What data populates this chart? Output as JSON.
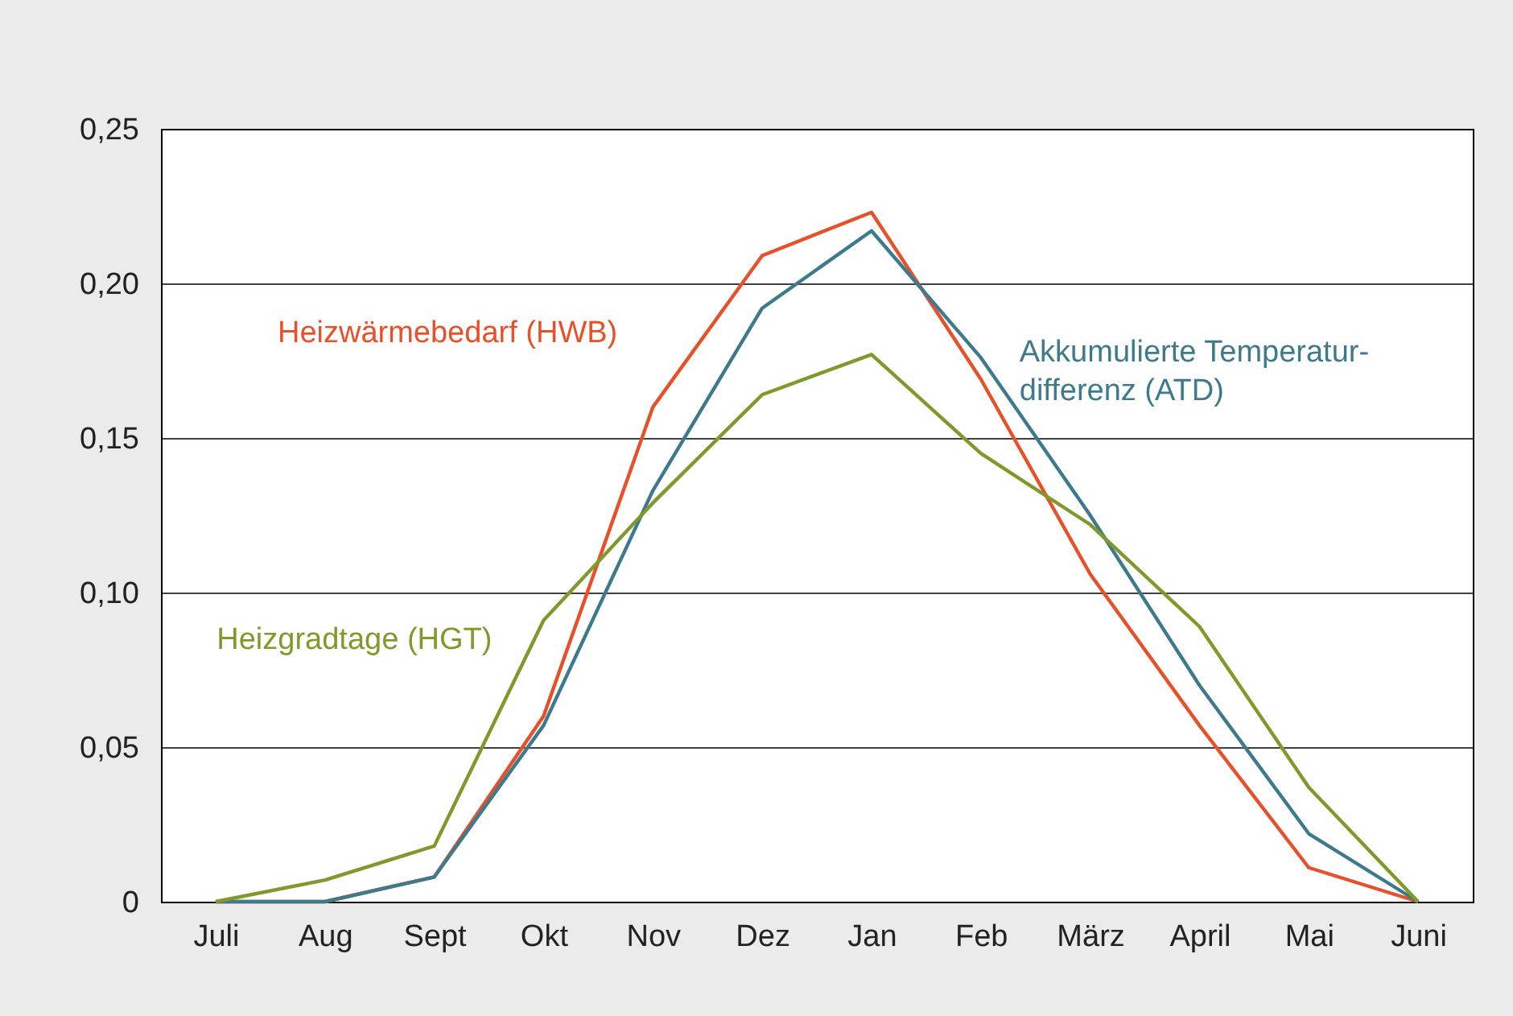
{
  "chart_data": {
    "type": "line",
    "categories": [
      "Juli",
      "Aug",
      "Sept",
      "Okt",
      "Nov",
      "Dez",
      "Jan",
      "Feb",
      "März",
      "April",
      "Mai",
      "Juni"
    ],
    "series": [
      {
        "name": "Heizwärmebedarf (HWB)",
        "color": "#e8502a",
        "values": [
          0,
          0,
          0.008,
          0.06,
          0.16,
          0.209,
          0.223,
          0.169,
          0.106,
          0.057,
          0.011,
          0
        ]
      },
      {
        "name": "Akkumulierte Temperatur-\ndifferenz (ATD)",
        "color": "#3d7a8c",
        "values": [
          0,
          0,
          0.008,
          0.057,
          0.133,
          0.192,
          0.217,
          0.176,
          0.125,
          0.07,
          0.022,
          0
        ]
      },
      {
        "name": "Heizgradtage (HGT)",
        "color": "#7f9a2a",
        "values": [
          0,
          0.007,
          0.018,
          0.091,
          0.129,
          0.164,
          0.177,
          0.145,
          0.122,
          0.089,
          0.037,
          0
        ]
      }
    ],
    "ylim": [
      0,
      0.25
    ],
    "yticks": [
      {
        "value": 0,
        "label": "0"
      },
      {
        "value": 0.05,
        "label": "0,05"
      },
      {
        "value": 0.1,
        "label": "0,10"
      },
      {
        "value": 0.15,
        "label": "0,15"
      },
      {
        "value": 0.2,
        "label": "0,20"
      },
      {
        "value": 0.25,
        "label": "0,25"
      }
    ],
    "grid": "y",
    "legend": false,
    "marker": "none",
    "line_style": "solid"
  }
}
